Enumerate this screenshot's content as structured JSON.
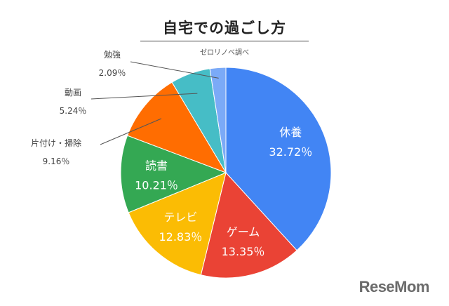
{
  "chart_data": {
    "type": "pie",
    "title": "自宅での過ごし方",
    "subtitle": "ゼロリノベ調べ",
    "slices": [
      {
        "label": "休養",
        "value": 32.72,
        "value_label": "32.72％",
        "color": "#4285F4",
        "label_pos": "inside"
      },
      {
        "label": "ゲーム",
        "value": 13.35,
        "value_label": "13.35％",
        "color": "#EA4335",
        "label_pos": "inside"
      },
      {
        "label": "テレビ",
        "value": 12.83,
        "value_label": "12.83％",
        "color": "#FBBC04",
        "label_pos": "inside"
      },
      {
        "label": "読書",
        "value": 10.21,
        "value_label": "10.21％",
        "color": "#34A853",
        "label_pos": "inside"
      },
      {
        "label": "片付け・掃除",
        "value": 9.16,
        "value_label": "9.16％",
        "color": "#FF6D01",
        "label_pos": "outside"
      },
      {
        "label": "動画",
        "value": 5.24,
        "value_label": "5.24％",
        "color": "#46BDC6",
        "label_pos": "outside"
      },
      {
        "label": "勉強",
        "value": 2.09,
        "value_label": "2.09％",
        "color": "#7BAAF7",
        "label_pos": "outside"
      }
    ],
    "legend": "none"
  },
  "watermark": "ReseMom"
}
